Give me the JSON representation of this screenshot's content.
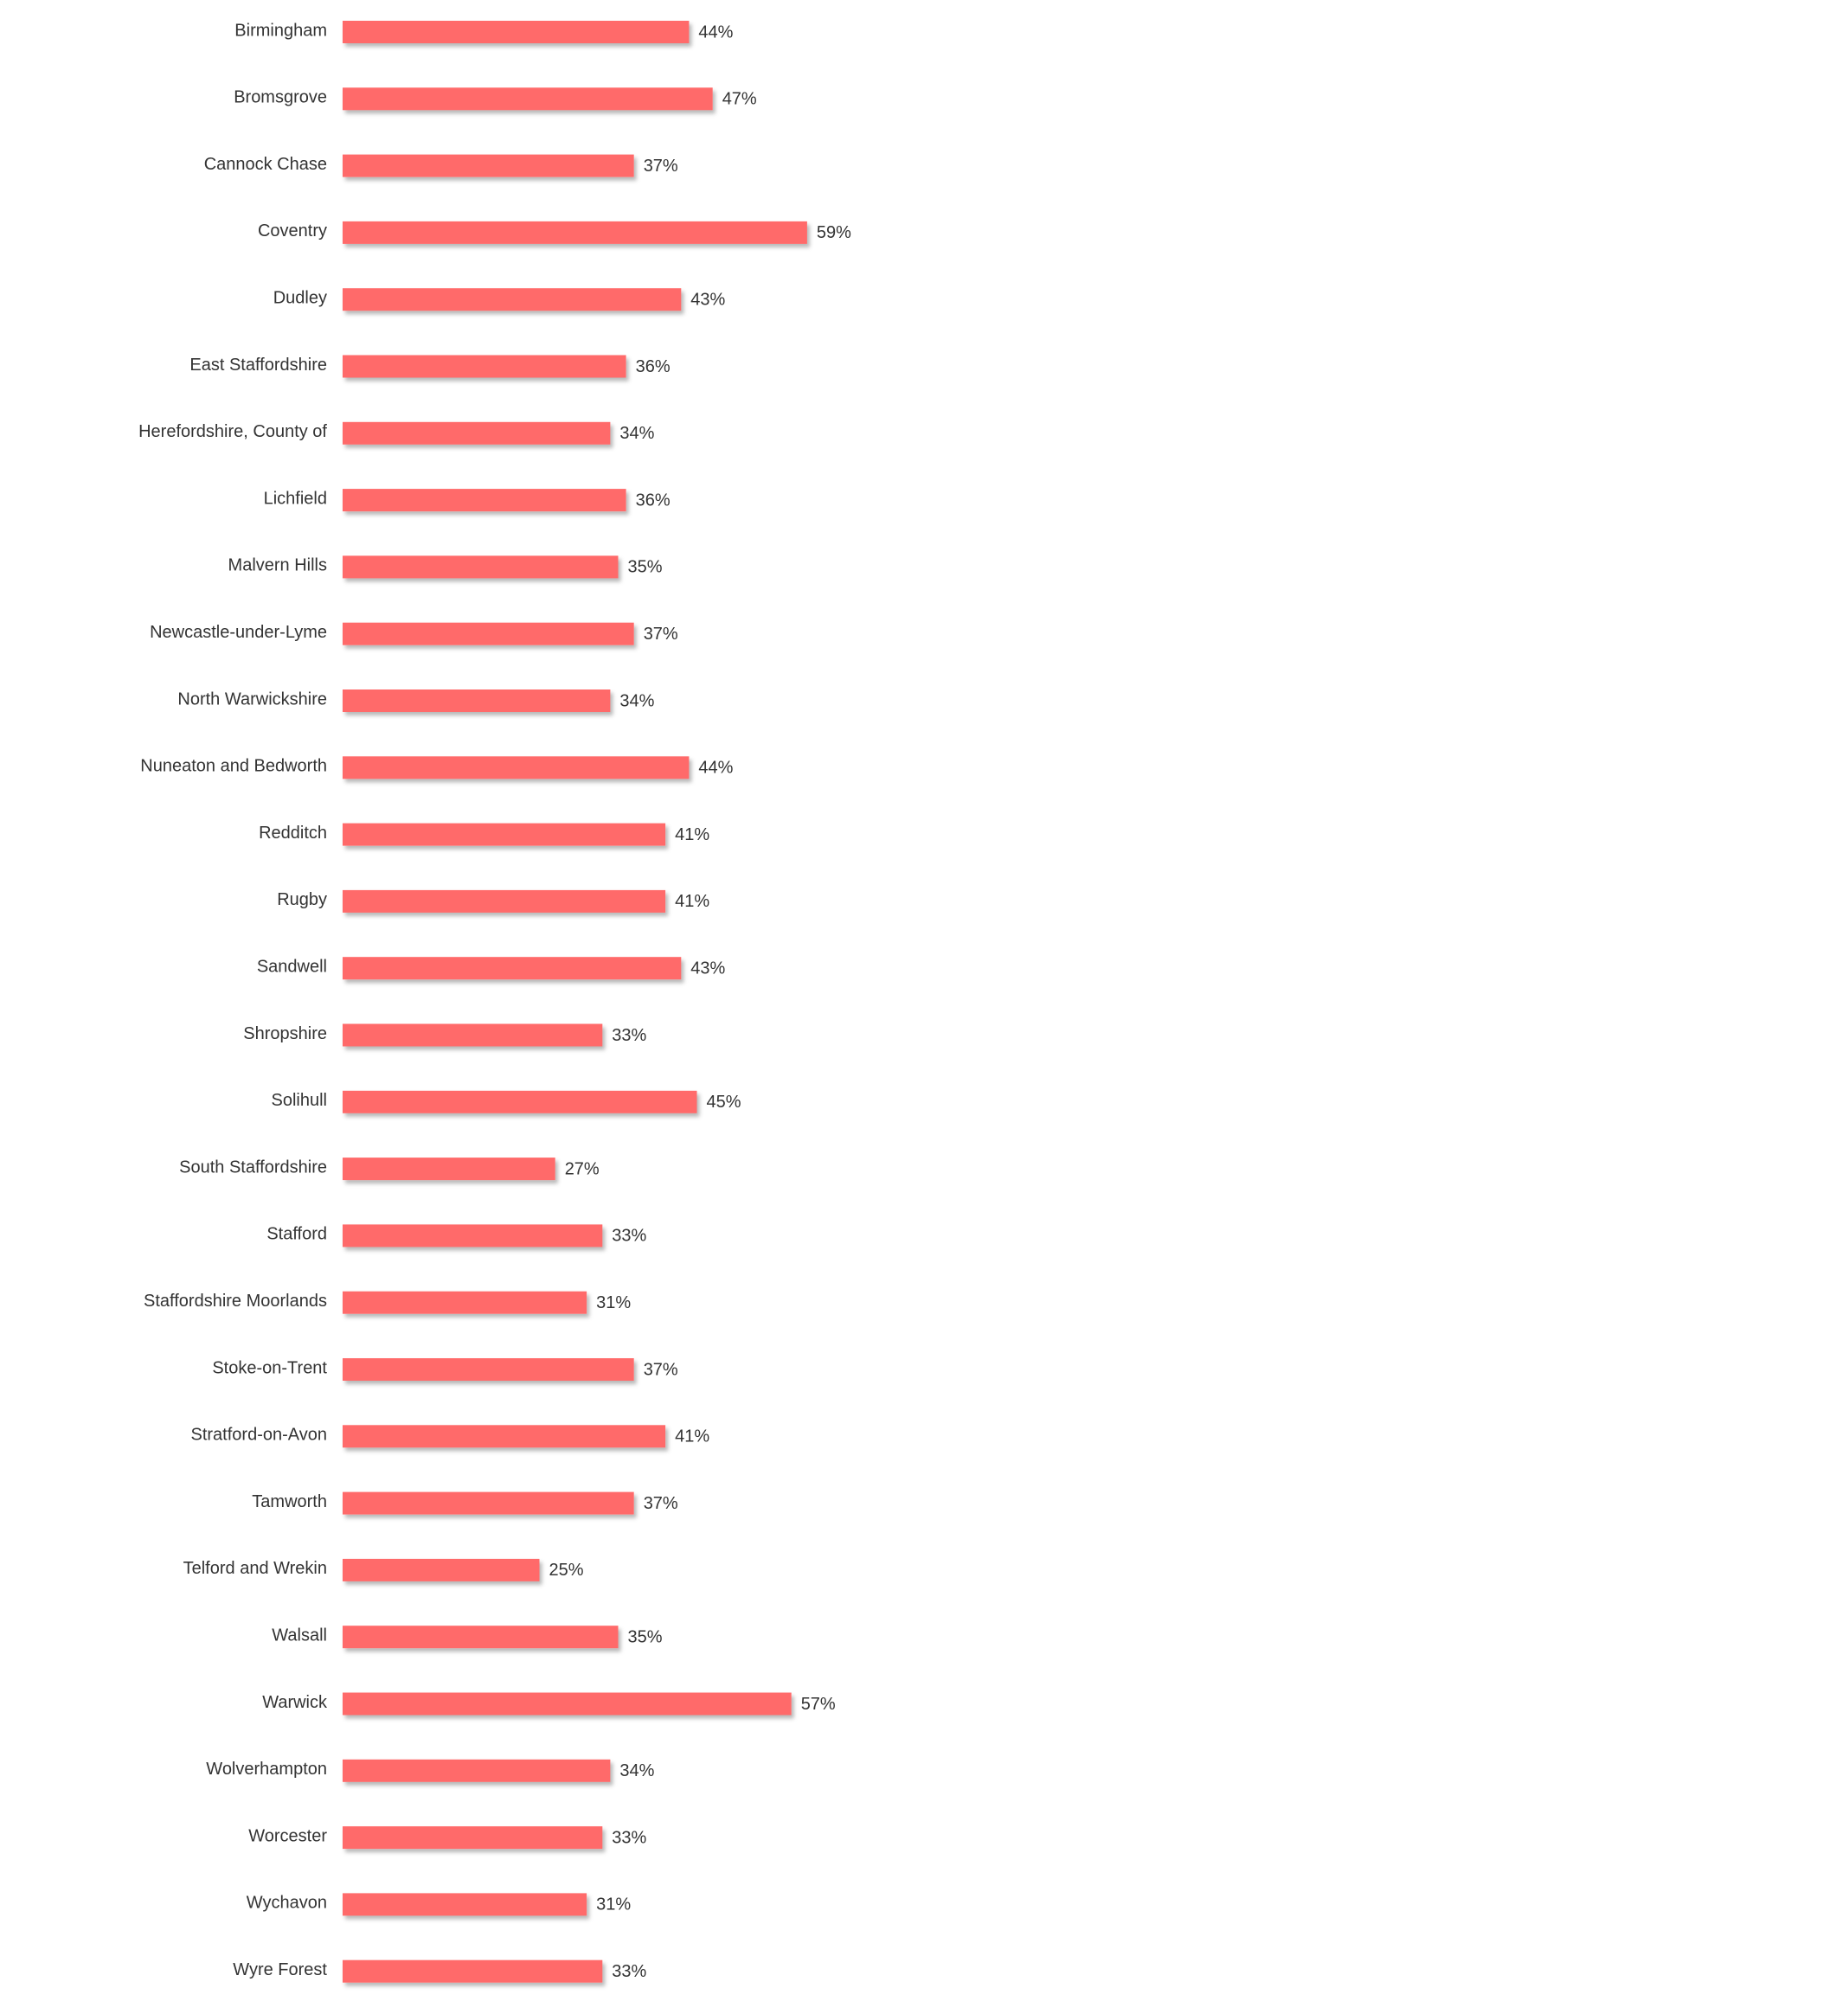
{
  "chart_data": {
    "type": "bar",
    "orientation": "horizontal",
    "title": "",
    "xlabel": "",
    "ylabel": "",
    "xlim": [
      0,
      100
    ],
    "grid": false,
    "legend": "none",
    "bar_color": "#FF6B6B",
    "value_suffix": "%",
    "categories": [
      "Birmingham",
      "Bromsgrove",
      "Cannock Chase",
      "Coventry",
      "Dudley",
      "East Staffordshire",
      "Herefordshire, County of",
      "Lichfield",
      "Malvern Hills",
      "Newcastle-under-Lyme",
      "North Warwickshire",
      "Nuneaton and Bedworth",
      "Redditch",
      "Rugby",
      "Sandwell",
      "Shropshire",
      "Solihull",
      "South Staffordshire",
      "Stafford",
      "Staffordshire Moorlands",
      "Stoke-on-Trent",
      "Stratford-on-Avon",
      "Tamworth",
      "Telford and Wrekin",
      "Walsall",
      "Warwick",
      "Wolverhampton",
      "Worcester",
      "Wychavon",
      "Wyre Forest"
    ],
    "values": [
      44,
      47,
      37,
      59,
      43,
      36,
      34,
      36,
      35,
      37,
      34,
      44,
      41,
      41,
      43,
      33,
      45,
      27,
      33,
      31,
      37,
      41,
      37,
      25,
      35,
      57,
      34,
      33,
      31,
      33
    ],
    "value_labels": [
      "44%",
      "47%",
      "37%",
      "59%",
      "43%",
      "36%",
      "34%",
      "36%",
      "35%",
      "37%",
      "34%",
      "44%",
      "41%",
      "41%",
      "43%",
      "33%",
      "45%",
      "27%",
      "33%",
      "31%",
      "37%",
      "41%",
      "37%",
      "25%",
      "35%",
      "57%",
      "34%",
      "33%",
      "31%",
      "33%"
    ]
  }
}
